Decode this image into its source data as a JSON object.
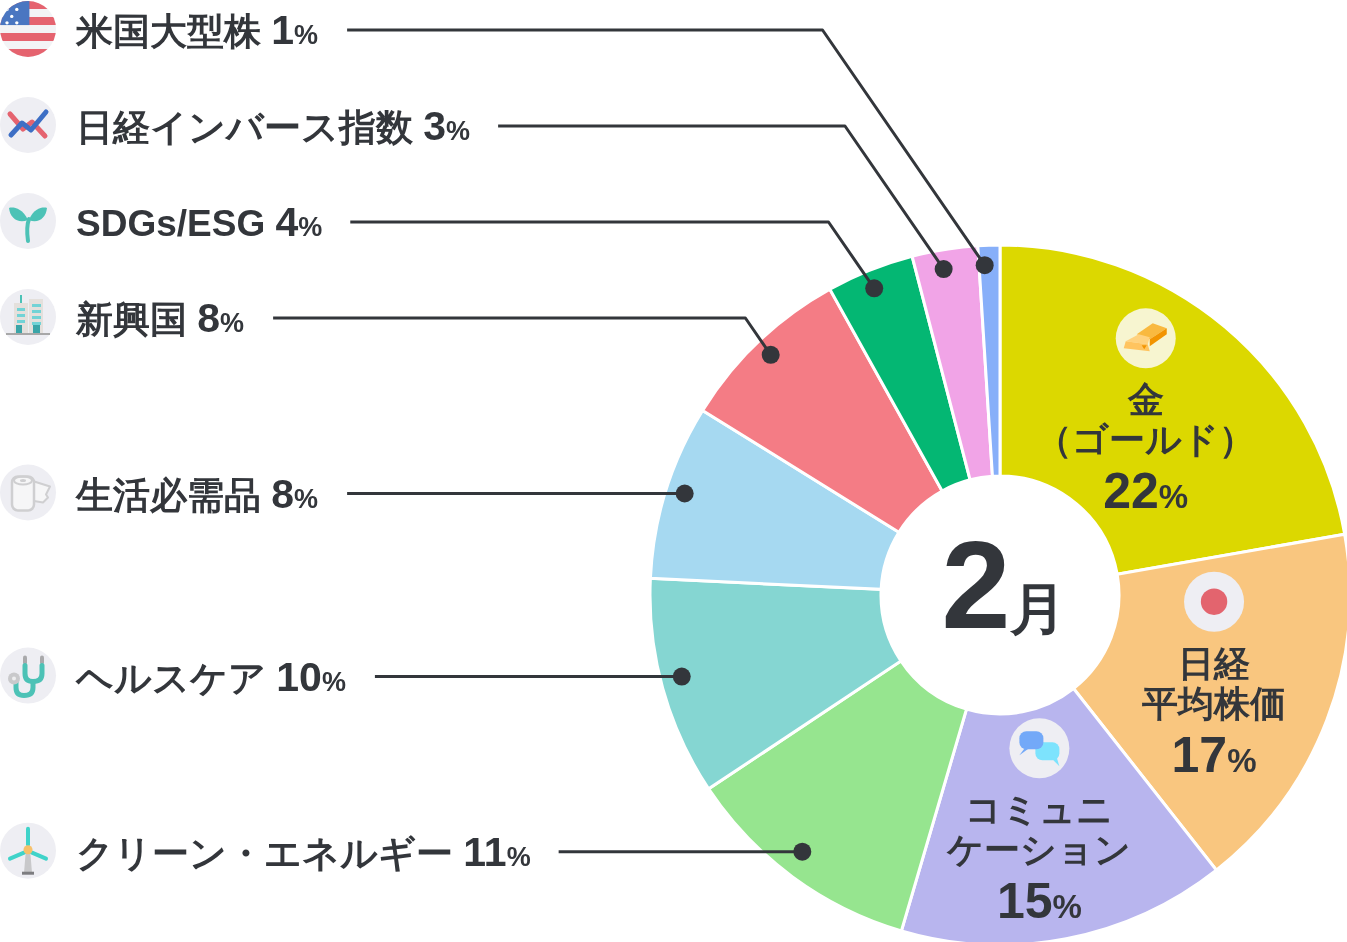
{
  "chart_data": {
    "type": "donut",
    "title": "2月",
    "categories": [
      "金（ゴールド）",
      "日経平均株価",
      "コミュニケーション",
      "クリーン・エネルギー",
      "ヘルスケア",
      "生活必需品",
      "新興国",
      "SDGs/ESG",
      "日経インバース指数",
      "米国大型株"
    ],
    "values": [
      22,
      17,
      15,
      11,
      10,
      8,
      8,
      4,
      3,
      1
    ],
    "value_labels": [
      "22%",
      "17%",
      "15%",
      "11%",
      "10%",
      "8%",
      "8%",
      "4%",
      "3%",
      "1%"
    ],
    "colors": [
      "#dcd800",
      "#f9c67f",
      "#b8b5ee",
      "#96e58f",
      "#85d6d2",
      "#a6d9f1",
      "#f47c85",
      "#04b773",
      "#f1a4e7",
      "#87aff9"
    ]
  }
}
